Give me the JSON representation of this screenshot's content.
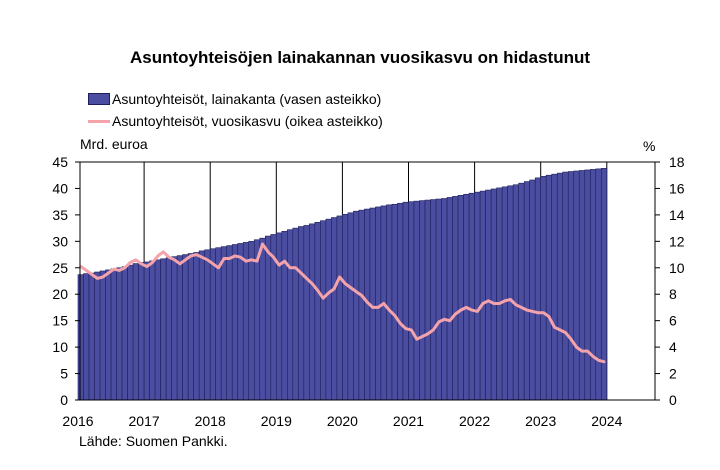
{
  "chart_data": {
    "type": "bar",
    "title": "Asuntoyhteisöjen lainakannan vuosikasvu on hidastunut",
    "left_axis_unit": "Mrd. euroa",
    "right_axis_unit": "%",
    "source": "Lähde: Suomen Pankki.",
    "ylim_left": [
      0,
      45
    ],
    "ylim_right": [
      0,
      18
    ],
    "yticks_left": [
      "0",
      "5",
      "10",
      "15",
      "20",
      "25",
      "30",
      "35",
      "40",
      "45"
    ],
    "yticks_right": [
      "0",
      "2",
      "4",
      "6",
      "8",
      "10",
      "12",
      "14",
      "16",
      "18"
    ],
    "x_tick_labels": [
      "2016",
      "2017",
      "2018",
      "2019",
      "2020",
      "2021",
      "2022",
      "2023",
      "2024"
    ],
    "grid": "vertical year lines",
    "legend_position": "top-left",
    "colors": {
      "bars": "#4b4ea0",
      "bar_edge": "#1e1f5a",
      "line": "#f4a3ab"
    },
    "x_start": "2016-01",
    "x_end": "2023-12",
    "series": [
      {
        "name": "Asuntoyhteisöt, lainakanta (vasen asteikko)",
        "type": "bar",
        "axis": "left",
        "values": [
          23.7,
          23.9,
          24.0,
          24.2,
          24.4,
          24.6,
          24.8,
          25.0,
          25.2,
          25.5,
          25.8,
          26.0,
          26.1,
          26.3,
          26.5,
          26.7,
          26.9,
          27.1,
          27.3,
          27.5,
          27.7,
          27.9,
          28.2,
          28.4,
          28.6,
          28.8,
          29.0,
          29.2,
          29.4,
          29.6,
          29.8,
          30.0,
          30.3,
          30.6,
          31.0,
          31.3,
          31.6,
          31.9,
          32.2,
          32.5,
          32.8,
          33.0,
          33.3,
          33.6,
          33.9,
          34.2,
          34.5,
          34.8,
          35.1,
          35.4,
          35.7,
          35.9,
          36.1,
          36.3,
          36.5,
          36.7,
          36.9,
          37.0,
          37.2,
          37.4,
          37.5,
          37.6,
          37.7,
          37.8,
          37.9,
          38.0,
          38.1,
          38.3,
          38.5,
          38.7,
          38.9,
          39.1,
          39.3,
          39.5,
          39.7,
          39.9,
          40.1,
          40.3,
          40.5,
          40.7,
          41.0,
          41.3,
          41.6,
          42.0,
          42.3,
          42.5,
          42.7,
          42.9,
          43.1,
          43.2,
          43.3,
          43.4,
          43.5,
          43.6,
          43.7,
          43.8
        ]
      },
      {
        "name": "Asuntoyhteisöt, vuosikasvu (oikea asteikko)",
        "type": "line",
        "axis": "right",
        "values": [
          10.1,
          9.8,
          9.5,
          9.2,
          9.3,
          9.6,
          9.9,
          9.8,
          10.0,
          10.4,
          10.6,
          10.3,
          10.1,
          10.4,
          10.9,
          11.2,
          10.8,
          10.6,
          10.3,
          10.6,
          10.9,
          11.0,
          10.8,
          10.6,
          10.3,
          10.0,
          10.7,
          10.7,
          10.9,
          10.8,
          10.5,
          10.6,
          10.5,
          11.8,
          11.2,
          10.8,
          10.2,
          10.5,
          10.0,
          10.0,
          9.6,
          9.2,
          8.8,
          8.3,
          7.7,
          8.1,
          8.4,
          9.3,
          8.8,
          8.5,
          8.2,
          7.9,
          7.4,
          7.0,
          7.0,
          7.3,
          6.8,
          6.4,
          5.8,
          5.4,
          5.3,
          4.6,
          4.8,
          5.0,
          5.3,
          5.9,
          6.1,
          6.0,
          6.5,
          6.8,
          7.0,
          6.8,
          6.7,
          7.3,
          7.5,
          7.3,
          7.3,
          7.5,
          7.6,
          7.2,
          7.0,
          6.8,
          6.7,
          6.6,
          6.6,
          6.3,
          5.5,
          5.3,
          5.1,
          4.6,
          4.0,
          3.7,
          3.7,
          3.3,
          3.0,
          2.9
        ]
      }
    ]
  }
}
